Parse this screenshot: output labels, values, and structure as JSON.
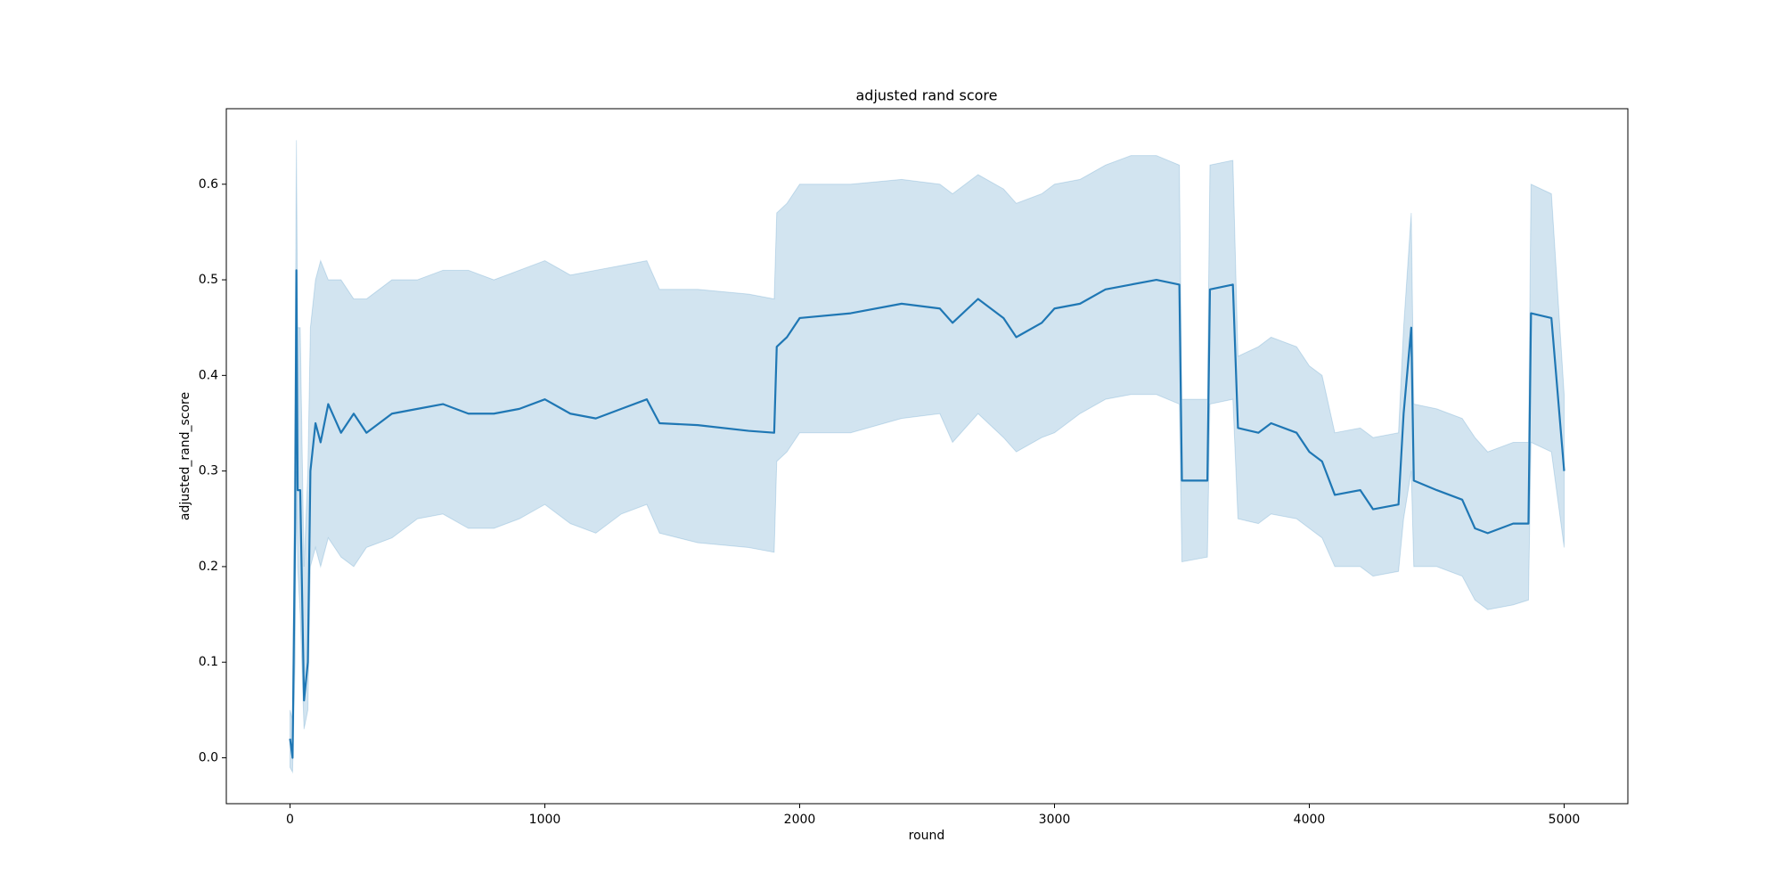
{
  "chart_data": {
    "type": "line",
    "title": "adjusted rand score",
    "xlabel": "round",
    "ylabel": "adjusted_rand_score",
    "x": [
      0,
      10,
      20,
      25,
      30,
      40,
      55,
      70,
      80,
      100,
      120,
      150,
      200,
      250,
      300,
      400,
      500,
      600,
      700,
      800,
      900,
      1000,
      1100,
      1200,
      1300,
      1400,
      1450,
      1600,
      1800,
      1900,
      1910,
      1950,
      2000,
      2200,
      2400,
      2550,
      2600,
      2700,
      2800,
      2850,
      2950,
      3000,
      3100,
      3200,
      3300,
      3400,
      3490,
      3500,
      3600,
      3610,
      3700,
      3720,
      3800,
      3850,
      3950,
      4000,
      4050,
      4100,
      4200,
      4250,
      4350,
      4370,
      4400,
      4410,
      4500,
      4600,
      4650,
      4700,
      4800,
      4860,
      4870,
      4950,
      5000
    ],
    "series": [
      {
        "color": "#1f77b4",
        "values": [
          0.02,
          0.0,
          0.24,
          0.51,
          0.28,
          0.28,
          0.06,
          0.1,
          0.3,
          0.35,
          0.33,
          0.37,
          0.34,
          0.36,
          0.34,
          0.36,
          0.365,
          0.37,
          0.36,
          0.36,
          0.365,
          0.375,
          0.36,
          0.355,
          0.365,
          0.375,
          0.35,
          0.348,
          0.342,
          0.34,
          0.43,
          0.44,
          0.46,
          0.465,
          0.475,
          0.47,
          0.455,
          0.48,
          0.46,
          0.44,
          0.455,
          0.47,
          0.475,
          0.49,
          0.495,
          0.5,
          0.495,
          0.29,
          0.29,
          0.49,
          0.495,
          0.345,
          0.34,
          0.35,
          0.34,
          0.32,
          0.31,
          0.275,
          0.28,
          0.26,
          0.265,
          0.36,
          0.45,
          0.29,
          0.28,
          0.27,
          0.24,
          0.235,
          0.245,
          0.245,
          0.465,
          0.46,
          0.3
        ],
        "lower": [
          -0.01,
          -0.015,
          0.1,
          0.3,
          0.2,
          0.15,
          0.03,
          0.05,
          0.2,
          0.22,
          0.2,
          0.23,
          0.21,
          0.2,
          0.22,
          0.23,
          0.25,
          0.255,
          0.24,
          0.24,
          0.25,
          0.265,
          0.245,
          0.235,
          0.255,
          0.265,
          0.235,
          0.225,
          0.22,
          0.215,
          0.31,
          0.32,
          0.34,
          0.34,
          0.355,
          0.36,
          0.33,
          0.36,
          0.335,
          0.32,
          0.335,
          0.34,
          0.36,
          0.375,
          0.38,
          0.38,
          0.37,
          0.205,
          0.21,
          0.37,
          0.375,
          0.25,
          0.245,
          0.255,
          0.25,
          0.24,
          0.23,
          0.2,
          0.2,
          0.19,
          0.195,
          0.25,
          0.3,
          0.2,
          0.2,
          0.19,
          0.165,
          0.155,
          0.16,
          0.165,
          0.33,
          0.32,
          0.22
        ],
        "upper": [
          0.05,
          0.04,
          0.4,
          0.646,
          0.45,
          0.45,
          0.2,
          0.3,
          0.45,
          0.5,
          0.52,
          0.5,
          0.5,
          0.48,
          0.48,
          0.5,
          0.5,
          0.51,
          0.51,
          0.5,
          0.51,
          0.52,
          0.505,
          0.51,
          0.515,
          0.52,
          0.49,
          0.49,
          0.485,
          0.48,
          0.57,
          0.58,
          0.6,
          0.6,
          0.605,
          0.6,
          0.59,
          0.61,
          0.595,
          0.58,
          0.59,
          0.6,
          0.605,
          0.62,
          0.63,
          0.63,
          0.62,
          0.375,
          0.375,
          0.62,
          0.625,
          0.42,
          0.43,
          0.44,
          0.43,
          0.41,
          0.4,
          0.34,
          0.345,
          0.335,
          0.34,
          0.45,
          0.57,
          0.37,
          0.365,
          0.355,
          0.335,
          0.32,
          0.33,
          0.33,
          0.6,
          0.59,
          0.38
        ]
      }
    ],
    "xlim": [
      -250,
      5250
    ],
    "xticks": [
      0,
      1000,
      2000,
      3000,
      4000,
      5000
    ],
    "ylim": [
      -0.048,
      0.679
    ],
    "yticks": [
      {
        "value": 0,
        "label": "0.0"
      },
      0.1,
      0.2,
      0.3,
      0.4,
      0.5,
      0.6
    ]
  }
}
